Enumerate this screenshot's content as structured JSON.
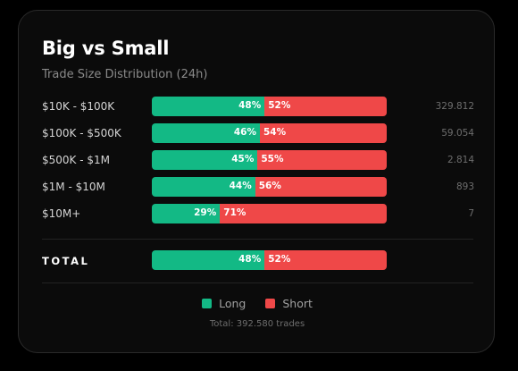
{
  "header": {
    "title": "Big vs Small",
    "subtitle": "Trade Size Distribution (24h)"
  },
  "colors": {
    "long": "#13b985",
    "short": "#ef4848"
  },
  "rows": [
    {
      "label": "$10K - $100K",
      "long_pct": 48,
      "short_pct": 52,
      "long_text": "48%",
      "short_text": "52%",
      "count": "329.812"
    },
    {
      "label": "$100K - $500K",
      "long_pct": 46,
      "short_pct": 54,
      "long_text": "46%",
      "short_text": "54%",
      "count": "59.054"
    },
    {
      "label": "$500K - $1M",
      "long_pct": 45,
      "short_pct": 55,
      "long_text": "45%",
      "short_text": "55%",
      "count": "2.814"
    },
    {
      "label": "$1M - $10M",
      "long_pct": 44,
      "short_pct": 56,
      "long_text": "44%",
      "short_text": "56%",
      "count": "893"
    },
    {
      "label": "$10M+",
      "long_pct": 29,
      "short_pct": 71,
      "long_text": "29%",
      "short_text": "71%",
      "count": "7"
    }
  ],
  "total": {
    "label": "TOTAL",
    "long_pct": 48,
    "short_pct": 52,
    "long_text": "48%",
    "short_text": "52%"
  },
  "legend": {
    "long_label": "Long",
    "short_label": "Short"
  },
  "footer": {
    "text": "Total: 392.580 trades"
  }
}
